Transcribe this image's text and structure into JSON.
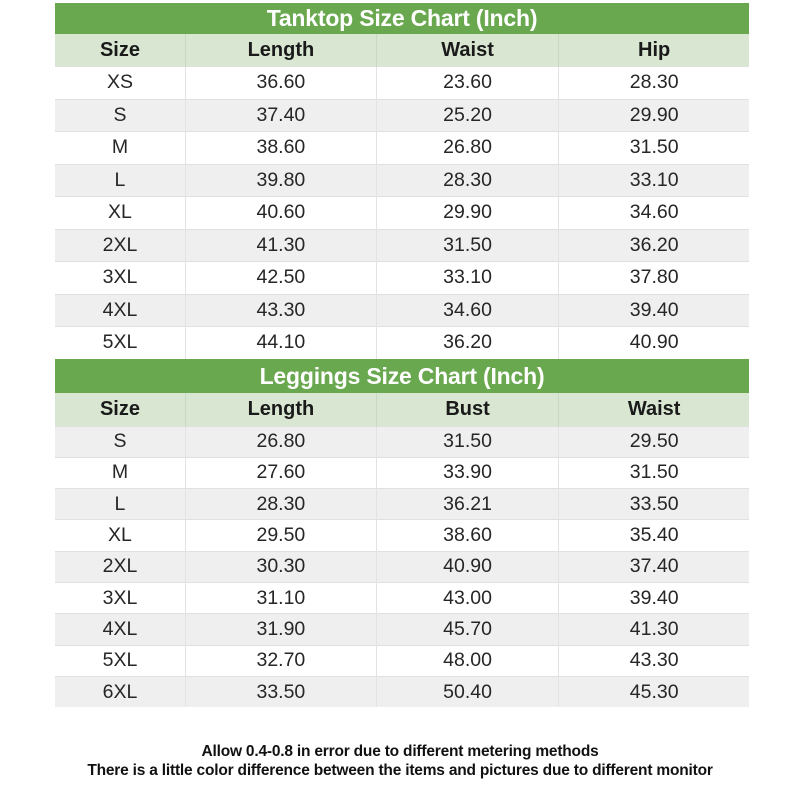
{
  "colors": {
    "header_green": "#6aa84f",
    "header_light_green": "#d9e7d2",
    "row_alt_gray": "#efefef",
    "row_white": "#ffffff",
    "border": "#e0e0e0",
    "title_text": "#ffffff",
    "body_text": "#202020"
  },
  "tanktop": {
    "title": "Tanktop Size Chart (Inch)",
    "columns": [
      "Size",
      "Length",
      "Waist",
      "Hip"
    ],
    "rows": [
      [
        "XS",
        "36.60",
        "23.60",
        "28.30"
      ],
      [
        "S",
        "37.40",
        "25.20",
        "29.90"
      ],
      [
        "M",
        "38.60",
        "26.80",
        "31.50"
      ],
      [
        "L",
        "39.80",
        "28.30",
        "33.10"
      ],
      [
        "XL",
        "40.60",
        "29.90",
        "34.60"
      ],
      [
        "2XL",
        "41.30",
        "31.50",
        "36.20"
      ],
      [
        "3XL",
        "42.50",
        "33.10",
        "37.80"
      ],
      [
        "4XL",
        "43.30",
        "34.60",
        "39.40"
      ],
      [
        "5XL",
        "44.10",
        "36.20",
        "40.90"
      ]
    ]
  },
  "leggings": {
    "title": "Leggings Size Chart (Inch)",
    "columns": [
      "Size",
      "Length",
      "Bust",
      "Waist"
    ],
    "rows": [
      [
        "S",
        "26.80",
        "31.50",
        "29.50"
      ],
      [
        "M",
        "27.60",
        "33.90",
        "31.50"
      ],
      [
        "L",
        "28.30",
        "36.21",
        "33.50"
      ],
      [
        "XL",
        "29.50",
        "38.60",
        "35.40"
      ],
      [
        "2XL",
        "30.30",
        "40.90",
        "37.40"
      ],
      [
        "3XL",
        "31.10",
        "43.00",
        "39.40"
      ],
      [
        "4XL",
        "31.90",
        "45.70",
        "41.30"
      ],
      [
        "5XL",
        "32.70",
        "48.00",
        "43.30"
      ],
      [
        "6XL",
        "33.50",
        "50.40",
        "45.30"
      ]
    ]
  },
  "footer": {
    "line1": "Allow 0.4-0.8 in error due to different metering methods",
    "line2": "There is a little color difference between the items and pictures due to different monitor"
  }
}
